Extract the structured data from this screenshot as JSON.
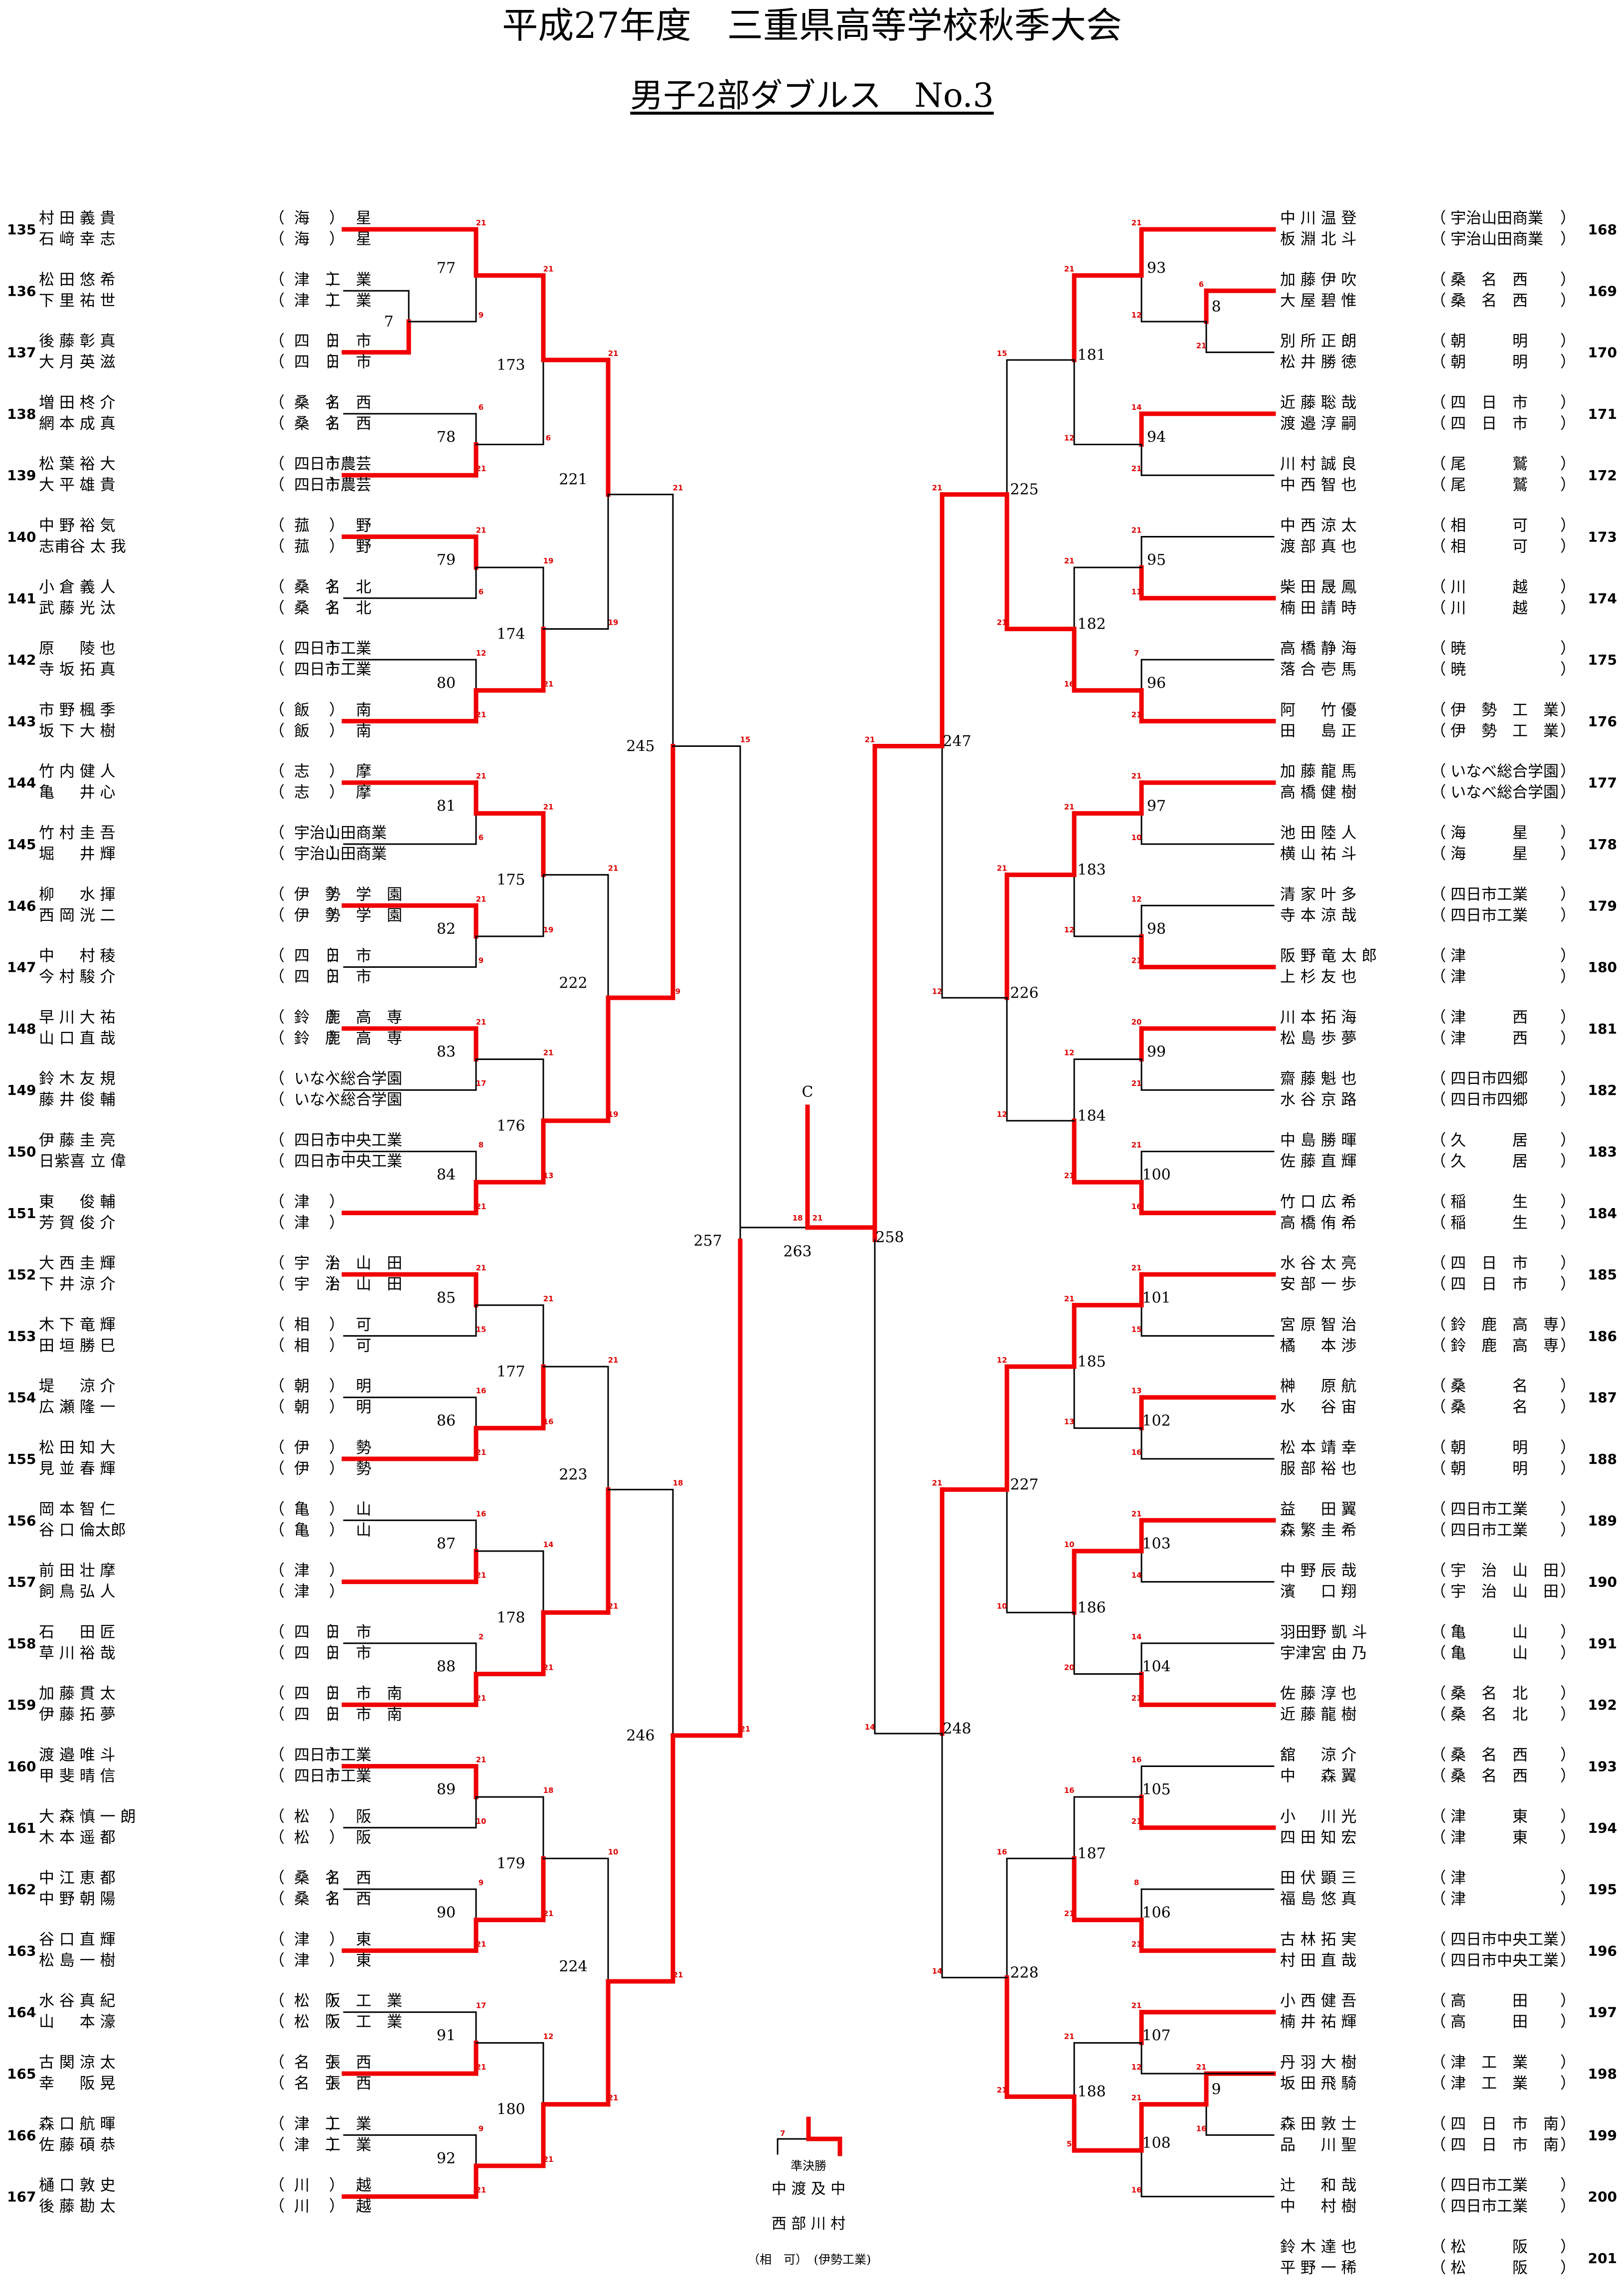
{
  "header": {
    "title": "平成27年度　三重県高等学校秋季大会",
    "subtitle": "男子2部ダブルス　No.3"
  },
  "left_pairs": [
    {
      "no": "135",
      "p1": "村 田 義 貴",
      "p2": "石 﨑 幸 志",
      "s1": "海　　　星",
      "s2": "海　　　星"
    },
    {
      "no": "136",
      "p1": "松 田 悠 希",
      "p2": "下 里 祐 世",
      "s1": "津　工　業",
      "s2": "津　工　業"
    },
    {
      "no": "137",
      "p1": "後 藤 彰 真",
      "p2": "大 月 英 滋",
      "s1": "四　日　市",
      "s2": "四　日　市"
    },
    {
      "no": "138",
      "p1": "増 田 柊 介",
      "p2": "網 本 成 真",
      "s1": "桑　名　西",
      "s2": "桑　名　西"
    },
    {
      "no": "139",
      "p1": "松 葉 裕 大",
      "p2": "大 平 雄 貴",
      "s1": "四日市農芸",
      "s2": "四日市農芸"
    },
    {
      "no": "140",
      "p1": "中 野 裕 気",
      "p2": "志甫谷 太 我",
      "s1": "菰　　　野",
      "s2": "菰　　　野"
    },
    {
      "no": "141",
      "p1": "小 倉 義 人",
      "p2": "武 藤 光 汰",
      "s1": "桑　名　北",
      "s2": "桑　名　北"
    },
    {
      "no": "142",
      "p1": "原 　 陵 也",
      "p2": "寺 坂 拓 真",
      "s1": "四日市工業",
      "s2": "四日市工業"
    },
    {
      "no": "143",
      "p1": "市 野 楓 季",
      "p2": "坂 下 大 樹",
      "s1": "飯　　　南",
      "s2": "飯　　　南"
    },
    {
      "no": "144",
      "p1": "竹 内 健 人",
      "p2": "亀 　 井 心",
      "s1": "志　　　摩",
      "s2": "志　　　摩"
    },
    {
      "no": "145",
      "p1": "竹 村 圭 吾",
      "p2": "堀 　 井 輝",
      "s1": "宇治山田商業",
      "s2": "宇治山田商業"
    },
    {
      "no": "146",
      "p1": "柳 　 水 揮",
      "p2": "西 岡 洸 二",
      "s1": "伊　勢　学　園",
      "s2": "伊　勢　学　園"
    },
    {
      "no": "147",
      "p1": "中 　 村 稜",
      "p2": "今 村 駿 介",
      "s1": "四　日　市",
      "s2": "四　日　市"
    },
    {
      "no": "148",
      "p1": "早 川 大 祐",
      "p2": "山 口 直 哉",
      "s1": "鈴　鹿　高　専",
      "s2": "鈴　鹿　高　専"
    },
    {
      "no": "149",
      "p1": "鈴 木 友 規",
      "p2": "藤 井 俊 輔",
      "s1": "いなべ総合学園",
      "s2": "いなべ総合学園"
    },
    {
      "no": "150",
      "p1": "伊 藤 圭 亮",
      "p2": "日紫喜 立 偉",
      "s1": "四日市中央工業",
      "s2": "四日市中央工業"
    },
    {
      "no": "151",
      "p1": "東 　 俊 輔",
      "p2": "芳 賀 俊 介",
      "s1": "津",
      "s2": "津"
    },
    {
      "no": "152",
      "p1": "大 西 圭 輝",
      "p2": "下 井 涼 介",
      "s1": "宇　治　山　田",
      "s2": "宇　治　山　田"
    },
    {
      "no": "153",
      "p1": "木 下 竜 輝",
      "p2": "田 垣 勝 巳",
      "s1": "相　　　可",
      "s2": "相　　　可"
    },
    {
      "no": "154",
      "p1": "堤 　 涼 介",
      "p2": "広 瀬 隆 一",
      "s1": "朝　　　明",
      "s2": "朝　　　明"
    },
    {
      "no": "155",
      "p1": "松 田 知 大",
      "p2": "見 並 春 輝",
      "s1": "伊　　　勢",
      "s2": "伊　　　勢"
    },
    {
      "no": "156",
      "p1": "岡 本 智 仁",
      "p2": "谷 口 倫太郎",
      "s1": "亀　　　山",
      "s2": "亀　　　山"
    },
    {
      "no": "157",
      "p1": "前 田 壮 摩",
      "p2": "飼 鳥 弘 人",
      "s1": "津",
      "s2": "津"
    },
    {
      "no": "158",
      "p1": "石 　 田 匠",
      "p2": "草 川 裕 哉",
      "s1": "四　日　市",
      "s2": "四　日　市"
    },
    {
      "no": "159",
      "p1": "加 藤 貫 太",
      "p2": "伊 藤 拓 夢",
      "s1": "四　日　市　南",
      "s2": "四　日　市　南"
    },
    {
      "no": "160",
      "p1": "渡 邉 唯 斗",
      "p2": "甲 斐 晴 信",
      "s1": "四日市工業",
      "s2": "四日市工業"
    },
    {
      "no": "161",
      "p1": "大 森 慎 一 朗",
      "p2": "木 本 遥 都",
      "s1": "松　　　阪",
      "s2": "松　　　阪"
    },
    {
      "no": "162",
      "p1": "中 江 恵 都",
      "p2": "中 野 朝 陽",
      "s1": "桑　名　西",
      "s2": "桑　名　西"
    },
    {
      "no": "163",
      "p1": "谷 口 直 輝",
      "p2": "松 島 一 樹",
      "s1": "津　　　東",
      "s2": "津　　　東"
    },
    {
      "no": "164",
      "p1": "水 谷 真 紀",
      "p2": "山 　 本 濠",
      "s1": "松　阪　工　業",
      "s2": "松　阪　工　業"
    },
    {
      "no": "165",
      "p1": "古 関 涼 太",
      "p2": "幸 　 阪 晃",
      "s1": "名　張　西",
      "s2": "名　張　西"
    },
    {
      "no": "166",
      "p1": "森 口 航 暉",
      "p2": "佐 藤 碩 恭",
      "s1": "津　工　業",
      "s2": "津　工　業"
    },
    {
      "no": "167",
      "p1": "樋 口 敦 史",
      "p2": "後 藤 勘 太",
      "s1": "川　　　越",
      "s2": "川　　　越"
    }
  ],
  "right_pairs": [
    {
      "no": "168",
      "p1": "中 川 温 登",
      "p2": "板 淵 北 斗",
      "s1": "宇治山田商業",
      "s2": "宇治山田商業"
    },
    {
      "no": "169",
      "p1": "加 藤 伊 吹",
      "p2": "大 屋 碧 惟",
      "s1": "桑　名　西",
      "s2": "桑　名　西"
    },
    {
      "no": "170",
      "p1": "別 所 正 朗",
      "p2": "松 井 勝 徳",
      "s1": "朝　　　明",
      "s2": "朝　　　明"
    },
    {
      "no": "171",
      "p1": "近 藤 聡 哉",
      "p2": "渡 邉 淳 嗣",
      "s1": "四　日　市",
      "s2": "四　日　市"
    },
    {
      "no": "172",
      "p1": "川 村 誠 良",
      "p2": "中 西 智 也",
      "s1": "尾　　　鷲",
      "s2": "尾　　　鷲"
    },
    {
      "no": "173",
      "p1": "中 西 涼 太",
      "p2": "渡 部 真 也",
      "s1": "相　　　可",
      "s2": "相　　　可"
    },
    {
      "no": "174",
      "p1": "柴 田 晟 鳳",
      "p2": "楠 田 請 時",
      "s1": "川　　　越",
      "s2": "川　　　越"
    },
    {
      "no": "175",
      "p1": "高 橋 静 海",
      "p2": "落 合 壱 馬",
      "s1": "暁",
      "s2": "暁"
    },
    {
      "no": "176",
      "p1": "阿 　 竹 優",
      "p2": "田 　 島 正",
      "s1": "伊　勢　工　業",
      "s2": "伊　勢　工　業"
    },
    {
      "no": "177",
      "p1": "加 藤 龍 馬",
      "p2": "高 橋 健 樹",
      "s1": "いなべ総合学園",
      "s2": "いなべ総合学園"
    },
    {
      "no": "178",
      "p1": "池 田 陸 人",
      "p2": "横 山 祐 斗",
      "s1": "海　　　星",
      "s2": "海　　　星"
    },
    {
      "no": "179",
      "p1": "清 家 叶 多",
      "p2": "寺 本 涼 哉",
      "s1": "四日市工業",
      "s2": "四日市工業"
    },
    {
      "no": "180",
      "p1": "阪 野 竜 太 郎",
      "p2": "上 杉 友 也",
      "s1": "津",
      "s2": "津"
    },
    {
      "no": "181",
      "p1": "川 本 拓 海",
      "p2": "松 島 歩 夢",
      "s1": "津　　　西",
      "s2": "津　　　西"
    },
    {
      "no": "182",
      "p1": "齋 藤 魁 也",
      "p2": "水 谷 京 路",
      "s1": "四日市四郷",
      "s2": "四日市四郷"
    },
    {
      "no": "183",
      "p1": "中 島 勝 暉",
      "p2": "佐 藤 直 輝",
      "s1": "久　　　居",
      "s2": "久　　　居"
    },
    {
      "no": "184",
      "p1": "竹 口 広 希",
      "p2": "高 橋 侑 希",
      "s1": "稲　　　生",
      "s2": "稲　　　生"
    },
    {
      "no": "185",
      "p1": "水 谷 太 亮",
      "p2": "安 部 一 歩",
      "s1": "四　日　市",
      "s2": "四　日　市"
    },
    {
      "no": "186",
      "p1": "宮 原 智 治",
      "p2": "橘 　 本 渉",
      "s1": "鈴　鹿　高　専",
      "s2": "鈴　鹿　高　専"
    },
    {
      "no": "187",
      "p1": "榊 　 原 航",
      "p2": "水 　 谷 宙",
      "s1": "桑　　　名",
      "s2": "桑　　　名"
    },
    {
      "no": "188",
      "p1": "松 本 靖 幸",
      "p2": "服 部 裕 也",
      "s1": "朝　　　明",
      "s2": "朝　　　明"
    },
    {
      "no": "189",
      "p1": "益 　 田 翼",
      "p2": "森 繁 圭 希",
      "s1": "四日市工業",
      "s2": "四日市工業"
    },
    {
      "no": "190",
      "p1": "中 野 辰 哉",
      "p2": "濱 　 口 翔",
      "s1": "宇　治　山　田",
      "s2": "宇　治　山　田"
    },
    {
      "no": "191",
      "p1": "羽田野 凱 斗",
      "p2": "宇津宮 由 乃",
      "s1": "亀　　　山",
      "s2": "亀　　　山"
    },
    {
      "no": "192",
      "p1": "佐 藤 淳 也",
      "p2": "近 藤 龍 樹",
      "s1": "桑　名　北",
      "s2": "桑　名　北"
    },
    {
      "no": "193",
      "p1": "舘 　 涼 介",
      "p2": "中 　 森 翼",
      "s1": "桑　名　西",
      "s2": "桑　名　西"
    },
    {
      "no": "194",
      "p1": "小 　 川 光",
      "p2": "四 田 知 宏",
      "s1": "津　　　東",
      "s2": "津　　　東"
    },
    {
      "no": "195",
      "p1": "田 伏 顕 三",
      "p2": "福 島 悠 真",
      "s1": "津",
      "s2": "津"
    },
    {
      "no": "196",
      "p1": "古 林 拓 実",
      "p2": "村 田 直 哉",
      "s1": "四日市中央工業",
      "s2": "四日市中央工業"
    },
    {
      "no": "197",
      "p1": "小 西 健 吾",
      "p2": "楠 井 祐 輝",
      "s1": "高　　　田",
      "s2": "高　　　田"
    },
    {
      "no": "198",
      "p1": "丹 羽 大 樹",
      "p2": "坂 田 飛 騎",
      "s1": "津　工　業",
      "s2": "津　工　業"
    },
    {
      "no": "199",
      "p1": "森 田 敦 士",
      "p2": "品 　 川 聖",
      "s1": "四　日　市　南",
      "s2": "四　日　市　南"
    },
    {
      "no": "200",
      "p1": "辻 　 和 哉",
      "p2": "中 　 村 樹",
      "s1": "四日市工業",
      "s2": "四日市工業"
    },
    {
      "no": "201",
      "p1": "鈴 木 達 也",
      "p2": "平 野 一 稀",
      "s1": "松　　　阪",
      "s2": "松　　　阪"
    }
  ],
  "left_matches": {
    "r0": "7",
    "r1": [
      "77",
      "78",
      "79",
      "80",
      "81",
      "82",
      "83",
      "84",
      "85",
      "86",
      "87",
      "88",
      "89",
      "90",
      "91",
      "92"
    ],
    "r2": [
      "173",
      "174",
      "175",
      "176",
      "177",
      "178",
      "179",
      "180"
    ],
    "r3": [
      "221",
      "222",
      "223",
      "224"
    ],
    "r4": [
      "245",
      "246"
    ],
    "r5": "257"
  },
  "right_matches": {
    "r0a": "8",
    "r0b": "9",
    "r1": [
      "93",
      "94",
      "95",
      "96",
      "97",
      "98",
      "99",
      "100",
      "101",
      "102",
      "103",
      "104",
      "105",
      "106",
      "107",
      "108"
    ],
    "r2": [
      "181",
      "182",
      "183",
      "184",
      "185",
      "186",
      "187",
      "188"
    ],
    "r3": [
      "225",
      "226",
      "227",
      "228"
    ],
    "r4": [
      "247",
      "248"
    ],
    "r5": "258"
  },
  "center": {
    "label": "C",
    "final_match": "263",
    "final_score_left": "18",
    "final_score_right": "21"
  },
  "legend": {
    "title": "準決勝",
    "score": "7",
    "winner_name_line1": "中 渡 及 中",
    "winner_name_line2": "西 部 川 村",
    "winner_school1": "（相　可）",
    "winner_school2": "(伊勢工業)"
  },
  "scores": {
    "left_r1": [
      [
        "21",
        "9"
      ],
      [
        "6",
        "21"
      ],
      [
        "21",
        "6"
      ],
      [
        "12",
        "21"
      ],
      [
        "21",
        "6"
      ],
      [
        "21",
        "9"
      ],
      [
        "21",
        "17"
      ],
      [
        "8",
        "21"
      ],
      [
        "21",
        "15"
      ],
      [
        "16",
        "21"
      ],
      [
        "16",
        "21"
      ],
      [
        "2",
        "21"
      ],
      [
        "21",
        "10"
      ],
      [
        "9",
        "21"
      ],
      [
        "17",
        "21"
      ],
      [
        "9",
        "21"
      ]
    ],
    "left_r0": [
      "9",
      "21"
    ],
    "left_r2": [
      [
        "21",
        "6"
      ],
      [
        "19",
        "21"
      ],
      [
        "21",
        "19"
      ],
      [
        "21",
        "13"
      ],
      [
        "21",
        "16"
      ],
      [
        "14",
        "21"
      ],
      [
        "18",
        "21"
      ],
      [
        "12",
        "21"
      ]
    ],
    "left_r3": [
      [
        "21",
        "19"
      ],
      [
        "21",
        "19"
      ],
      [
        "21",
        "21"
      ],
      [
        "10",
        "21"
      ]
    ],
    "left_r4": [
      [
        "21",
        "9"
      ],
      [
        "18",
        "21"
      ]
    ],
    "left_r5": [
      "15",
      "21"
    ],
    "right_r1": [
      [
        "21",
        "12"
      ],
      [
        "14",
        "21"
      ],
      [
        "21",
        "11"
      ],
      [
        "7",
        "21"
      ],
      [
        "21",
        "10"
      ],
      [
        "12",
        "21"
      ],
      [
        "20",
        "21"
      ],
      [
        "21",
        "16"
      ],
      [
        "21",
        "15"
      ],
      [
        "13",
        "16"
      ],
      [
        "21",
        "14"
      ],
      [
        "14",
        "21"
      ],
      [
        "16",
        "21"
      ],
      [
        "8",
        "21"
      ],
      [
        "21",
        "12"
      ],
      [
        "21",
        "16"
      ]
    ],
    "right_r0": [
      [
        "6",
        "21"
      ],
      [
        "21",
        "16"
      ]
    ],
    "right_r2": [
      [
        "21",
        "12"
      ],
      [
        "21",
        "16"
      ],
      [
        "21",
        "12"
      ],
      [
        "12",
        "21"
      ],
      [
        "21",
        "13"
      ],
      [
        "10",
        "20"
      ],
      [
        "16",
        "21"
      ],
      [
        "21",
        "5"
      ]
    ],
    "right_r3": [
      [
        "15",
        "21"
      ],
      [
        "21",
        "12"
      ],
      [
        "12",
        "10"
      ],
      [
        "16",
        "21"
      ]
    ],
    "right_r4": [
      [
        "21",
        "12"
      ],
      [
        "21",
        "14"
      ]
    ],
    "right_r5": [
      "21",
      "14"
    ]
  }
}
